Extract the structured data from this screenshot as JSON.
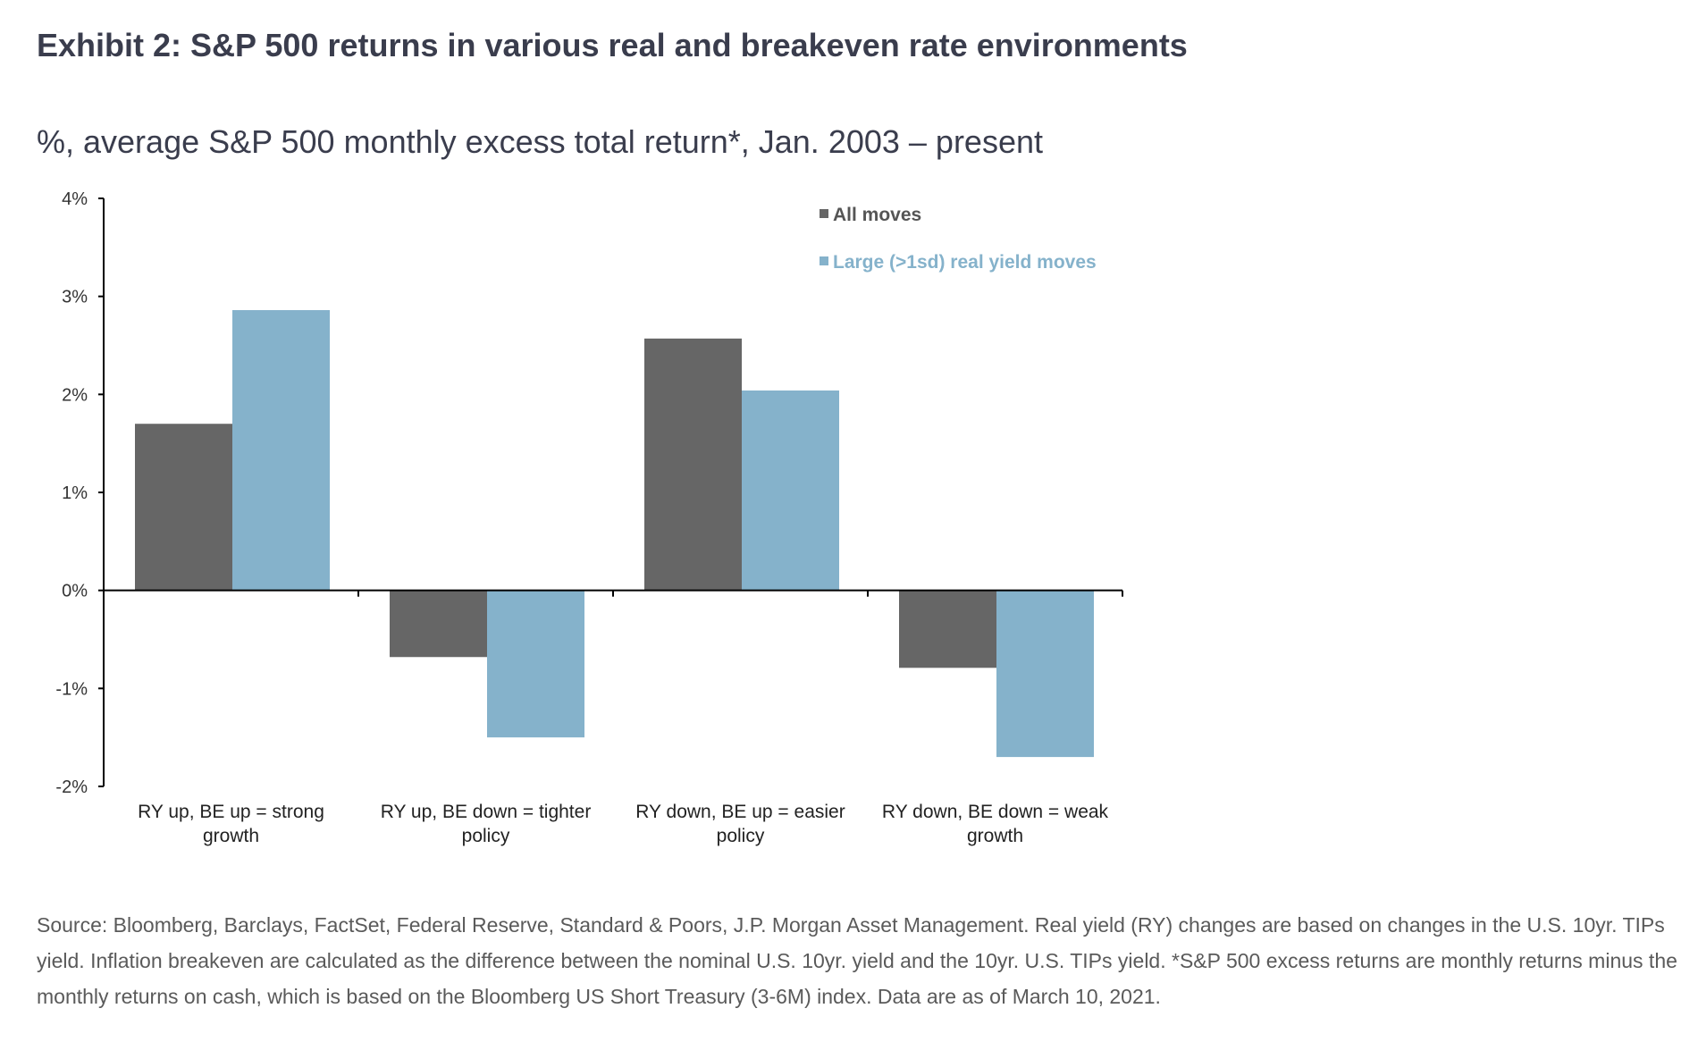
{
  "title": "Exhibit 2: S&P 500 returns in various real and breakeven rate environments",
  "subtitle": "%, average S&P 500 monthly excess total return*, Jan. 2003 – present",
  "footnote": "Source: Bloomberg, Barclays, FactSet, Federal Reserve, Standard & Poors, J.P. Morgan Asset Management. Real yield (RY) changes are based on changes in the U.S. 10yr. TIPs yield. Inflation breakeven are calculated as the difference between the nominal U.S. 10yr. yield and the 10yr. U.S. TIPs yield. *S&P 500 excess returns are monthly returns minus the monthly returns on cash, which is based on the Bloomberg US Short Treasury (3-6M) index. Data are as of March 10, 2021.",
  "chart_data": {
    "type": "bar",
    "categories": [
      [
        "RY up, BE up = strong",
        "growth"
      ],
      [
        "RY up, BE down = tighter",
        "policy"
      ],
      [
        "RY down, BE up = easier",
        "policy"
      ],
      [
        "RY down, BE down = weak",
        "growth"
      ]
    ],
    "series": [
      {
        "name": "All moves",
        "color": "#666666",
        "values": [
          1.7,
          -0.68,
          2.57,
          -0.79
        ]
      },
      {
        "name": "Large (>1sd) real yield moves",
        "color": "#85b2cb",
        "values": [
          2.86,
          -1.5,
          2.04,
          -1.7
        ]
      }
    ],
    "ylim": [
      -2,
      4
    ],
    "yticks": [
      -2,
      -1,
      0,
      1,
      2,
      3,
      4
    ],
    "ytick_labels": [
      "-2%",
      "-1%",
      "0%",
      "1%",
      "2%",
      "3%",
      "4%"
    ],
    "legend_position": "top-right",
    "grid": false
  }
}
